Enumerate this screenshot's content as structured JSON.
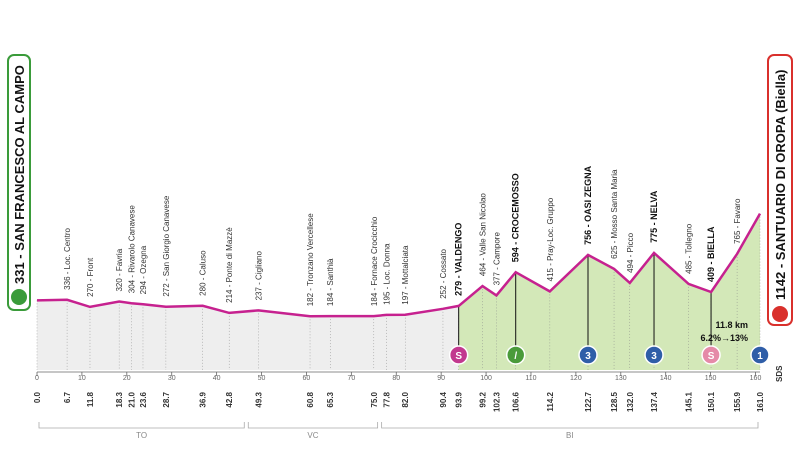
{
  "chart_data": {
    "type": "area",
    "x": [
      0.0,
      6.7,
      11.8,
      18.3,
      21.0,
      23.6,
      28.7,
      36.9,
      42.8,
      49.3,
      60.8,
      65.3,
      75.0,
      77.8,
      82.0,
      90.4,
      93.9,
      99.2,
      102.3,
      106.6,
      114.2,
      122.7,
      128.5,
      132.0,
      137.4,
      145.1,
      150.1,
      155.9,
      161.0
    ],
    "x_labels": [
      "0.0",
      "6.7",
      "11.8",
      "18.3",
      "21.0",
      "23.6",
      "28.7",
      "36.9",
      "42.8",
      "49.3",
      "60.8",
      "65.3",
      "75.0",
      "77.8",
      "82.0",
      "90.4",
      "93.9",
      "99.2",
      "102.3",
      "106.6",
      "114.2",
      "122.7",
      "128.5",
      "132.0",
      "137.4",
      "145.1",
      "150.1",
      "155.9",
      "161.0"
    ],
    "values": [
      331,
      336,
      270,
      320,
      304,
      294,
      272,
      280,
      214,
      237,
      182,
      184,
      184,
      195,
      197,
      252,
      279,
      464,
      377,
      594,
      415,
      756,
      625,
      494,
      775,
      485,
      409,
      765,
      1142
    ],
    "value_labels": [
      "331 - SAN FRANCESCO AL CAMPO",
      "336 - Loc. Centro",
      "270 - Front",
      "320 - Favria",
      "304 - Rivarolo Canavese",
      "294 - Ozegna",
      "272 - San Giorgio Canavese",
      "280 - Caluso",
      "214 - Ponte di Mazzè",
      "237 - Cigliano",
      "182 - Tronzano Vercellese",
      "184 - Santhià",
      "184 - Fornace Crocicchio",
      "195 - Loc. Donna",
      "197 - Mottalciata",
      "252 - Cossato",
      "279 - VALDENGO",
      "464 - Valle San Nicolao",
      "377 - Campore",
      "594 - CROCEMOSSO",
      "415 - Pray-Loc. Gruppo",
      "756 - OASI ZEGNA",
      "625 - Mosso Santa Maria",
      "494 - Picco",
      "775 - NELVA",
      "485 - Tollegno",
      "409 - BIELLA",
      "765 - Favaro",
      "1142 - SANTUARIO DI OROPA (Biella)"
    ],
    "color": "#c6218f",
    "xlim": [
      0,
      161
    ],
    "xticks": [
      0,
      10,
      20,
      30,
      40,
      50,
      60,
      70,
      80,
      90,
      100,
      110,
      120,
      130,
      140,
      150,
      160
    ],
    "ylim": [
      -320,
      1400
    ],
    "highlight_from": 93.9,
    "markers": [
      {
        "x": 93.9,
        "label": "S",
        "color": "#c2398f"
      },
      {
        "x": 106.6,
        "label": "/",
        "color": "#4a9b3a"
      },
      {
        "x": 122.7,
        "label": "3",
        "color": "#2f5ea8"
      },
      {
        "x": 137.4,
        "label": "3",
        "color": "#2f5ea8"
      },
      {
        "x": 150.1,
        "label": "S",
        "color": "#e58aa8"
      },
      {
        "x": 161.0,
        "label": "1",
        "color": "#2f5ea8"
      }
    ],
    "annotations": [
      "11.8 km",
      "6.2%→13%"
    ],
    "credit": "SDS",
    "regions": [
      {
        "label": "TO",
        "from": 0,
        "to": 46.6
      },
      {
        "label": "VC",
        "from": 46.6,
        "to": 76.3
      },
      {
        "label": "BI",
        "from": 76.3,
        "to": 161
      }
    ]
  }
}
